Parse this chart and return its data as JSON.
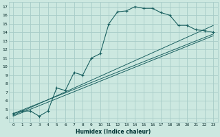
{
  "xlabel": "Humidex (Indice chaleur)",
  "bg_color": "#cce8e0",
  "grid_color": "#a8ccc8",
  "line_color": "#1a6060",
  "xlim": [
    -0.5,
    23.5
  ],
  "ylim": [
    3.5,
    17.5
  ],
  "xticks": [
    0,
    1,
    2,
    3,
    4,
    5,
    6,
    7,
    8,
    9,
    10,
    11,
    12,
    13,
    14,
    15,
    16,
    17,
    18,
    19,
    20,
    21,
    22,
    23
  ],
  "yticks": [
    4,
    5,
    6,
    7,
    8,
    9,
    10,
    11,
    12,
    13,
    14,
    15,
    16,
    17
  ],
  "main_line_x": [
    0,
    1,
    2,
    3,
    4,
    5,
    6,
    7,
    8,
    9,
    10,
    11,
    12,
    13,
    14,
    15,
    16,
    17,
    18,
    19,
    20,
    21,
    22,
    23
  ],
  "main_line_y": [
    4.5,
    4.8,
    4.8,
    4.2,
    4.8,
    7.5,
    7.2,
    9.3,
    9.0,
    11.0,
    11.5,
    15.0,
    16.4,
    16.5,
    17.0,
    16.8,
    16.8,
    16.3,
    16.0,
    14.8,
    14.8,
    14.3,
    14.2,
    14.0
  ],
  "line1_x": [
    0,
    23
  ],
  "line1_y": [
    4.5,
    13.8
  ],
  "line2_x": [
    0,
    23
  ],
  "line2_y": [
    4.3,
    14.8
  ],
  "line3_x": [
    0,
    23
  ],
  "line3_y": [
    4.2,
    13.6
  ]
}
